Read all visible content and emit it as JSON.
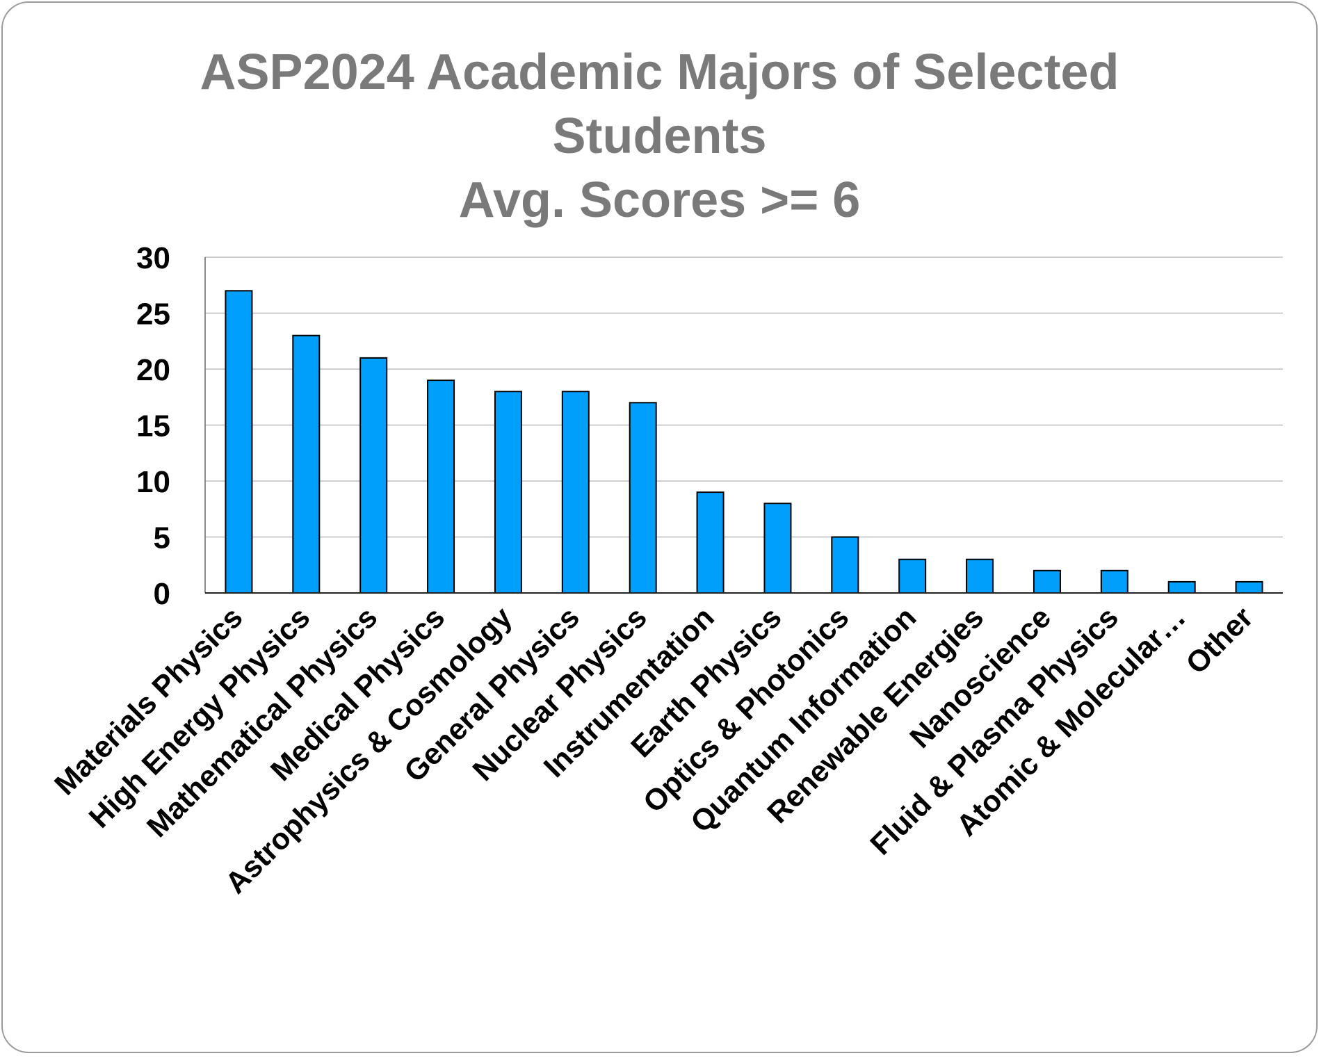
{
  "chart_data": {
    "type": "bar",
    "title_lines": [
      "ASP2024 Academic Majors of Selected",
      "Students",
      "Avg. Scores >= 6"
    ],
    "categories": [
      "Materials Physics",
      "High Energy Physics",
      "Mathematical Physics",
      "Medical Physics",
      "Astrophysics & Cosmology",
      "General Physics",
      "Nuclear Physics",
      "Instrumentation",
      "Earth Physics",
      "Optics & Photonics",
      "Quantum Information",
      "Renewable Energies",
      "Nanoscience",
      "Fluid & Plasma Physics",
      "Atomic & Molecular…",
      "Other"
    ],
    "values": [
      27,
      23,
      21,
      19,
      18,
      18,
      17,
      9,
      8,
      5,
      3,
      3,
      2,
      2,
      1,
      1
    ],
    "ylim": [
      0,
      30
    ],
    "yticks": [
      "0",
      "5",
      "10",
      "15",
      "20",
      "25",
      "30"
    ],
    "grid": true,
    "legend": "none",
    "xlabel": "",
    "ylabel": "",
    "colors": {
      "bar_fill": "#009ffb",
      "bar_stroke": "#000000",
      "grid": "#bdbdbd",
      "title": "#7a7a7a",
      "tick_text": "#000000"
    }
  }
}
